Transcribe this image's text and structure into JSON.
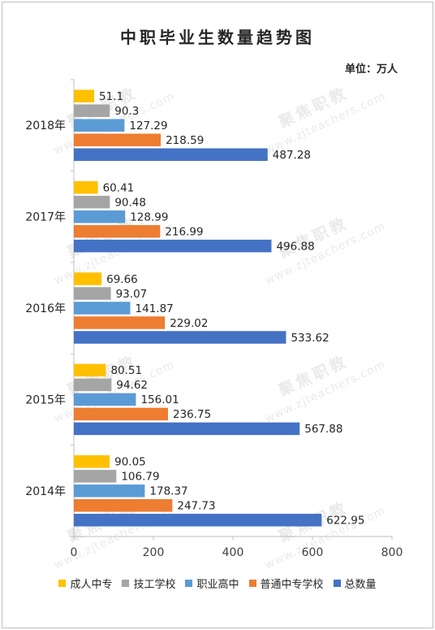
{
  "chart_data": {
    "type": "bar",
    "orientation": "horizontal",
    "title": "中职毕业生数量趋势图",
    "unit_label": "单位：万人",
    "categories": [
      "2018年",
      "2017年",
      "2016年",
      "2015年",
      "2014年"
    ],
    "xlim": [
      0,
      800
    ],
    "x_ticks": [
      "0",
      "200",
      "400",
      "600",
      "800"
    ],
    "grid": false,
    "legend_position": "bottom",
    "series": [
      {
        "name": "成人中专",
        "color": "#ffc000",
        "values": [
          51.1,
          60.41,
          69.66,
          80.51,
          90.05
        ],
        "labels": [
          "51.1",
          "60.41",
          "69.66",
          "80.51",
          "90.05"
        ]
      },
      {
        "name": "技工学校",
        "color": "#a5a5a5",
        "values": [
          90.3,
          90.48,
          93.07,
          94.62,
          106.79
        ],
        "labels": [
          "90.3",
          "90.48",
          "93.07",
          "94.62",
          "106.79"
        ]
      },
      {
        "name": "职业高中",
        "color": "#5b9bd5",
        "values": [
          127.29,
          128.99,
          141.87,
          156.01,
          178.37
        ],
        "labels": [
          "127.29",
          "128.99",
          "141.87",
          "156.01",
          "178.37"
        ]
      },
      {
        "name": "普通中专学校",
        "color": "#ed7d31",
        "values": [
          218.59,
          216.99,
          229.02,
          236.75,
          247.73
        ],
        "labels": [
          "218.59",
          "216.99",
          "229.02",
          "236.75",
          "247.73"
        ]
      },
      {
        "name": "总数量",
        "color": "#4472c4",
        "values": [
          487.28,
          496.88,
          533.62,
          567.88,
          622.95
        ],
        "labels": [
          "487.28",
          "496.88",
          "533.62",
          "567.88",
          "622.95"
        ]
      }
    ]
  },
  "watermark": {
    "brand": "聚焦职教",
    "url": "www.zjteachers.com"
  }
}
